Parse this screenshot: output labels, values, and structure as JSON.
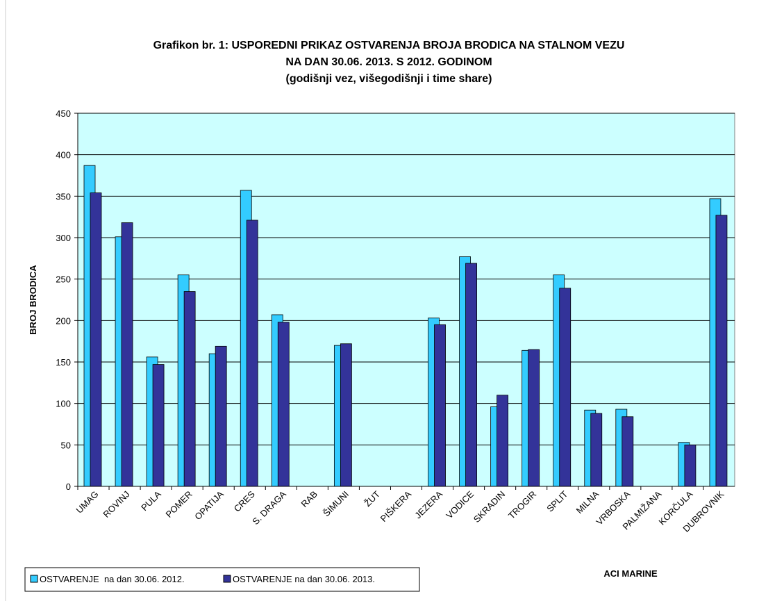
{
  "chart_data": {
    "type": "bar",
    "title": [
      "Grafikon br. 1: USPOREDNI PRIKAZ OSTVARENJA BROJA BRODICA NA STALNOM VEZU",
      "NA DAN 30.06. 2013. S 2012. GODINOM",
      "(godišnji vez, višegodišnji i time share)"
    ],
    "y_label": "BROJ BRODICA",
    "annotation": "ACI MARINE",
    "categories": [
      "UMAG",
      "ROVINJ",
      "PULA",
      "POMER",
      "OPATIJA",
      "CRES",
      "S. DRAGA",
      "RAB",
      "ŠIMUNI",
      "ŽUT",
      "PIŠKERA",
      "JEZERA",
      "VODICE",
      "SKRADIN",
      "TROGIR",
      "SPLIT",
      "MILNA",
      "VRBOSKA",
      "PALMIŽANA",
      "KORČULA",
      "DUBROVNIK"
    ],
    "series": [
      {
        "name": "OSTVARENJE  na dan 30.06. 2012.",
        "color": "#33ccff",
        "values": [
          387,
          301,
          156,
          255,
          160,
          357,
          207,
          null,
          170,
          null,
          null,
          203,
          277,
          96,
          164,
          255,
          92,
          93,
          null,
          53,
          347
        ]
      },
      {
        "name": "OSTVARENJE na dan 30.06. 2013.",
        "color": "#333399",
        "values": [
          354,
          318,
          147,
          235,
          169,
          321,
          198,
          null,
          172,
          null,
          null,
          195,
          269,
          110,
          165,
          239,
          88,
          84,
          null,
          50,
          327
        ]
      }
    ],
    "ylim": [
      0,
      450
    ],
    "yticks": [
      0,
      50,
      100,
      150,
      200,
      250,
      300,
      350,
      400,
      450
    ],
    "grid": true,
    "plot_background": "#ccffff",
    "legend": "bottom-left"
  }
}
